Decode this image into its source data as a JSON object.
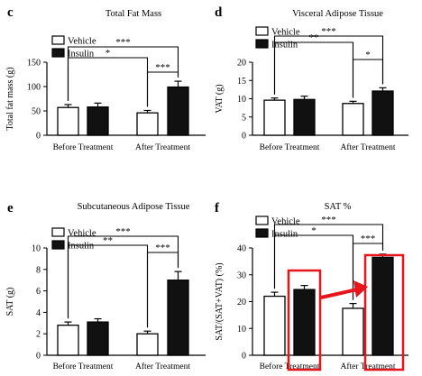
{
  "chart_data": [
    {
      "panel": "c",
      "type": "bar",
      "title": "Total Fat Mass",
      "ylabel": "Total fat mass (g)",
      "xlabel": "",
      "ylim": [
        0,
        150
      ],
      "yticks": [
        "0",
        "50",
        "100",
        "150"
      ],
      "categories": [
        "Before Treatment",
        "After Treatment"
      ],
      "series": [
        {
          "name": "Vehicle",
          "color": "#ffffff",
          "values": [
            57,
            46
          ],
          "errors": [
            6,
            5
          ]
        },
        {
          "name": "Insulin",
          "color": "#111111",
          "values": [
            58,
            99
          ],
          "errors": [
            8,
            12
          ]
        }
      ],
      "legend": "top-left",
      "annotations": [
        {
          "label": "*",
          "between": "Before Vehicle vs After Vehicle"
        },
        {
          "label": "***",
          "between": "Before Vehicle vs After Insulin"
        },
        {
          "label": "***",
          "between": "After Vehicle vs After Insulin"
        }
      ]
    },
    {
      "panel": "d",
      "type": "bar",
      "title": "Visceral Adipose Tissue",
      "ylabel": "VAT (g)",
      "xlabel": "",
      "ylim": [
        0,
        20
      ],
      "yticks": [
        "0",
        "5",
        "10",
        "15",
        "20"
      ],
      "categories": [
        "Before Treatment",
        "After Treatment"
      ],
      "series": [
        {
          "name": "Vehicle",
          "color": "#ffffff",
          "values": [
            9.6,
            8.7
          ],
          "errors": [
            0.6,
            0.6
          ]
        },
        {
          "name": "Insulin",
          "color": "#111111",
          "values": [
            9.8,
            12.1
          ],
          "errors": [
            0.9,
            0.9
          ]
        }
      ],
      "legend": "top-left",
      "annotations": [
        {
          "label": "**",
          "between": "Before Vehicle vs After Vehicle"
        },
        {
          "label": "***",
          "between": "Before Vehicle vs After Insulin"
        },
        {
          "label": "*",
          "between": "After Vehicle vs After Insulin"
        }
      ]
    },
    {
      "panel": "e",
      "type": "bar",
      "title": "Subcutaneous Adipose Tissue",
      "ylabel": "SAT (g)",
      "xlabel": "",
      "ylim": [
        0,
        10
      ],
      "yticks": [
        "0",
        "2",
        "4",
        "6",
        "8",
        "10"
      ],
      "categories": [
        "Before Treatment",
        "After Treatment"
      ],
      "series": [
        {
          "name": "Vehicle",
          "color": "#ffffff",
          "values": [
            2.8,
            2.0
          ],
          "errors": [
            0.3,
            0.25
          ]
        },
        {
          "name": "Insulin",
          "color": "#111111",
          "values": [
            3.1,
            7.0
          ],
          "errors": [
            0.3,
            0.8
          ]
        }
      ],
      "legend": "top-left",
      "annotations": [
        {
          "label": "**",
          "between": "Before Vehicle vs After Vehicle"
        },
        {
          "label": "***",
          "between": "Before Vehicle vs After Insulin"
        },
        {
          "label": "***",
          "between": "After Vehicle vs After Insulin"
        }
      ]
    },
    {
      "panel": "f",
      "type": "bar",
      "title": "SAT %",
      "ylabel": "SAT/(SAT+VAT) (%)",
      "xlabel": "",
      "ylim": [
        0,
        40
      ],
      "yticks": [
        "0",
        "10",
        "20",
        "30",
        "40"
      ],
      "categories": [
        "Before Treatment",
        "After Treatment"
      ],
      "series": [
        {
          "name": "Vehicle",
          "color": "#ffffff",
          "values": [
            22,
            17.5
          ],
          "errors": [
            1.5,
            1.8
          ]
        },
        {
          "name": "Insulin",
          "color": "#111111",
          "values": [
            24.5,
            36.5
          ],
          "errors": [
            1.5,
            1.2
          ]
        }
      ],
      "legend": "top-left",
      "highlight_color": "#e8141c",
      "annotations": [
        {
          "label": "*",
          "between": "Before Vehicle vs After Vehicle"
        },
        {
          "label": "***",
          "between": "Before Vehicle vs After Insulin"
        },
        {
          "label": "***",
          "between": "After Vehicle vs After Insulin"
        },
        {
          "label": "",
          "type": "red boxes around Before Insulin and After Insulin bars with red arrow between them"
        }
      ]
    }
  ]
}
